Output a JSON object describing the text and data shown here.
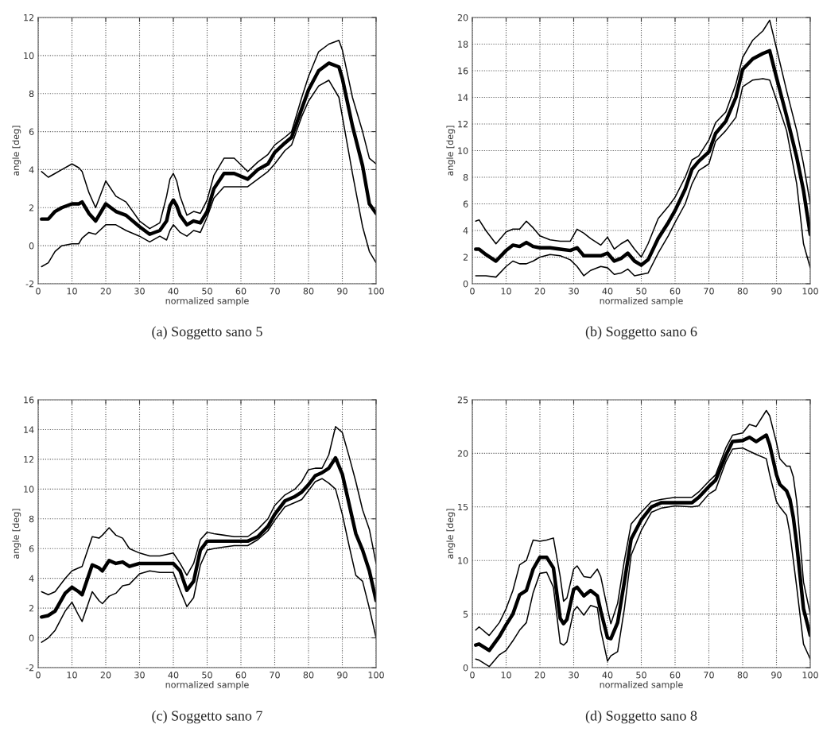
{
  "chart_data": [
    {
      "type": "line",
      "title": "(a) Soggetto sano 5",
      "xlabel": "normalized sample",
      "ylabel": "angle [deg]",
      "xlim": [
        0,
        100
      ],
      "xticks": [
        0,
        10,
        20,
        30,
        40,
        50,
        60,
        70,
        80,
        90,
        100
      ],
      "ylim": [
        -2,
        12
      ],
      "yticks": [
        -2,
        0,
        2,
        4,
        6,
        8,
        10,
        12
      ],
      "grid": true,
      "line_style": "solid",
      "x": [
        1,
        3,
        5,
        7,
        10,
        12,
        13,
        15,
        17,
        20,
        23,
        26,
        30,
        33,
        36,
        38,
        39,
        40,
        41,
        42,
        44,
        46,
        48,
        50,
        52,
        55,
        58,
        62,
        65,
        68,
        70,
        73,
        75,
        78,
        80,
        83,
        86,
        89,
        90,
        93,
        96,
        98,
        100
      ],
      "series": [
        {
          "color": "#000000",
          "values": [
            3.9,
            3.6,
            3.8,
            4.0,
            4.3,
            4.1,
            3.9,
            2.8,
            2.0,
            3.4,
            2.6,
            2.3,
            1.3,
            0.9,
            1.2,
            2.6,
            3.5,
            3.8,
            3.4,
            2.6,
            1.6,
            1.8,
            1.7,
            2.4,
            3.7,
            4.6,
            4.6,
            3.9,
            4.4,
            4.8,
            5.3,
            5.7,
            6.0,
            7.8,
            8.9,
            10.2,
            10.6,
            10.8,
            10.3,
            7.8,
            6.0,
            4.6,
            4.3
          ]
        },
        {
          "color": "#000000",
          "values": [
            1.4,
            1.4,
            1.8,
            2.0,
            2.2,
            2.2,
            2.3,
            1.7,
            1.3,
            2.2,
            1.8,
            1.6,
            1.0,
            0.6,
            0.8,
            1.3,
            2.1,
            2.4,
            2.1,
            1.6,
            1.1,
            1.3,
            1.2,
            1.8,
            3.0,
            3.8,
            3.8,
            3.5,
            4.0,
            4.3,
            4.9,
            5.4,
            5.7,
            7.2,
            8.2,
            9.2,
            9.6,
            9.4,
            8.8,
            6.3,
            4.2,
            2.2,
            1.7
          ]
        },
        {
          "color": "#000000",
          "values": [
            -1.1,
            -0.9,
            -0.3,
            0.0,
            0.1,
            0.1,
            0.4,
            0.7,
            0.6,
            1.1,
            1.1,
            0.8,
            0.5,
            0.2,
            0.5,
            0.3,
            0.8,
            1.1,
            0.9,
            0.7,
            0.5,
            0.8,
            0.7,
            1.5,
            2.5,
            3.1,
            3.1,
            3.1,
            3.5,
            3.9,
            4.3,
            5.0,
            5.3,
            6.8,
            7.6,
            8.4,
            8.7,
            7.8,
            6.8,
            3.8,
            1.0,
            -0.3,
            -0.9
          ]
        }
      ]
    },
    {
      "type": "line",
      "title": "(b) Soggetto sano 6",
      "xlabel": "normalized sample",
      "ylabel": "angle [deg]",
      "xlim": [
        0,
        100
      ],
      "xticks": [
        0,
        10,
        20,
        30,
        40,
        50,
        60,
        70,
        80,
        90,
        100
      ],
      "ylim": [
        0,
        20
      ],
      "yticks": [
        0,
        2,
        4,
        6,
        8,
        10,
        12,
        14,
        16,
        18,
        20
      ],
      "grid": true,
      "line_style": "solid",
      "x": [
        1,
        2,
        4,
        7,
        10,
        12,
        14,
        16,
        18,
        20,
        23,
        26,
        29,
        31,
        33,
        35,
        38,
        40,
        42,
        44,
        46,
        48,
        50,
        52,
        55,
        58,
        60,
        63,
        65,
        67,
        70,
        72,
        75,
        78,
        80,
        83,
        86,
        88,
        90,
        93,
        96,
        98,
        100
      ],
      "series": [
        {
          "color": "#000000",
          "values": [
            4.7,
            4.8,
            4.0,
            3.0,
            3.9,
            4.1,
            4.1,
            4.7,
            4.2,
            3.6,
            3.3,
            3.2,
            3.2,
            4.1,
            3.8,
            3.4,
            2.9,
            3.5,
            2.6,
            3.0,
            3.3,
            2.6,
            2.0,
            3.0,
            4.9,
            5.8,
            6.5,
            8.0,
            9.3,
            9.6,
            10.8,
            12.1,
            12.9,
            15.0,
            17.0,
            18.3,
            19.0,
            19.8,
            17.7,
            14.5,
            11.5,
            9.0,
            6.0
          ]
        },
        {
          "color": "#000000",
          "values": [
            2.6,
            2.6,
            2.2,
            1.7,
            2.5,
            2.9,
            2.8,
            3.1,
            2.8,
            2.7,
            2.7,
            2.6,
            2.5,
            2.7,
            2.1,
            2.1,
            2.1,
            2.3,
            1.7,
            1.9,
            2.3,
            1.7,
            1.4,
            1.8,
            3.4,
            4.6,
            5.5,
            7.1,
            8.6,
            9.2,
            9.9,
            11.3,
            12.2,
            14.0,
            16.1,
            16.9,
            17.3,
            17.5,
            15.5,
            12.6,
            9.5,
            7.0,
            3.7
          ]
        },
        {
          "color": "#000000",
          "values": [
            0.6,
            0.6,
            0.6,
            0.5,
            1.3,
            1.7,
            1.5,
            1.5,
            1.7,
            2.0,
            2.2,
            2.1,
            1.8,
            1.3,
            0.6,
            1.0,
            1.3,
            1.2,
            0.7,
            0.8,
            1.1,
            0.6,
            0.7,
            0.8,
            2.3,
            3.6,
            4.6,
            6.0,
            7.5,
            8.5,
            9.0,
            10.7,
            11.5,
            12.5,
            14.8,
            15.3,
            15.4,
            15.3,
            13.8,
            11.5,
            7.5,
            3.0,
            1.2
          ]
        }
      ]
    },
    {
      "type": "line",
      "title": "(c) Soggetto sano 7",
      "xlabel": "normalized sample",
      "ylabel": "angle [deg]",
      "xlim": [
        0,
        100
      ],
      "xticks": [
        0,
        10,
        20,
        30,
        40,
        50,
        60,
        70,
        80,
        90,
        100
      ],
      "ylim": [
        -2,
        16
      ],
      "yticks": [
        -2,
        0,
        2,
        4,
        6,
        8,
        10,
        12,
        14,
        16
      ],
      "grid": true,
      "line_style": "solid",
      "x": [
        1,
        3,
        5,
        8,
        10,
        12,
        13,
        16,
        18,
        19,
        21,
        23,
        25,
        27,
        30,
        33,
        36,
        40,
        42,
        44,
        46,
        48,
        50,
        52,
        55,
        58,
        62,
        65,
        68,
        70,
        73,
        76,
        78,
        80,
        82,
        84,
        86,
        88,
        90,
        92,
        94,
        96,
        98,
        100
      ],
      "series": [
        {
          "color": "#000000",
          "values": [
            3.1,
            2.9,
            3.1,
            4.0,
            4.5,
            4.7,
            4.8,
            6.8,
            6.7,
            6.9,
            7.4,
            6.9,
            6.7,
            6.0,
            5.7,
            5.5,
            5.5,
            5.7,
            5.0,
            4.2,
            5.0,
            6.6,
            7.1,
            7.0,
            6.9,
            6.8,
            6.8,
            7.3,
            8.0,
            8.9,
            9.6,
            10.0,
            10.5,
            11.3,
            11.4,
            11.4,
            12.3,
            14.2,
            13.8,
            12.2,
            10.5,
            8.6,
            7.3,
            5.0
          ]
        },
        {
          "color": "#000000",
          "values": [
            1.4,
            1.5,
            1.8,
            3.0,
            3.4,
            3.1,
            2.9,
            4.9,
            4.7,
            4.5,
            5.2,
            5.0,
            5.1,
            4.8,
            5.0,
            5.0,
            5.0,
            5.0,
            4.5,
            3.2,
            3.8,
            5.9,
            6.5,
            6.5,
            6.5,
            6.5,
            6.5,
            6.8,
            7.5,
            8.3,
            9.2,
            9.5,
            9.8,
            10.3,
            10.9,
            11.1,
            11.4,
            12.1,
            11.0,
            9.0,
            7.0,
            5.9,
            4.5,
            2.5
          ]
        },
        {
          "color": "#000000",
          "values": [
            -0.3,
            0.0,
            0.5,
            1.8,
            2.4,
            1.5,
            1.1,
            3.1,
            2.5,
            2.3,
            2.8,
            3.0,
            3.5,
            3.6,
            4.3,
            4.5,
            4.4,
            4.4,
            3.2,
            2.1,
            2.7,
            4.9,
            5.9,
            6.0,
            6.1,
            6.2,
            6.2,
            6.6,
            7.2,
            7.9,
            8.8,
            9.1,
            9.3,
            9.9,
            10.5,
            10.7,
            10.4,
            10.0,
            8.3,
            6.2,
            4.2,
            3.8,
            2.0,
            0.0
          ]
        }
      ]
    },
    {
      "type": "line",
      "title": "(d) Soggetto sano 8",
      "xlabel": "normalized sample",
      "ylabel": "angle [deg]",
      "xlim": [
        0,
        100
      ],
      "xticks": [
        0,
        10,
        20,
        30,
        40,
        50,
        60,
        70,
        80,
        90,
        100
      ],
      "ylim": [
        0,
        25
      ],
      "yticks": [
        0,
        5,
        10,
        15,
        20,
        25
      ],
      "grid": true,
      "line_style": "solid",
      "x": [
        1,
        2,
        5,
        8,
        10,
        12,
        14,
        16,
        18,
        20,
        22,
        24,
        26,
        27,
        28,
        30,
        31,
        33,
        35,
        37,
        38,
        40,
        41,
        43,
        45,
        47,
        50,
        53,
        56,
        60,
        65,
        67,
        70,
        72,
        75,
        77,
        80,
        82,
        84,
        87,
        88,
        90,
        91,
        93,
        94,
        95,
        96,
        98,
        100
      ],
      "series": [
        {
          "color": "#000000",
          "values": [
            3.5,
            3.8,
            3.0,
            4.2,
            5.5,
            7.2,
            9.6,
            10.0,
            11.9,
            11.8,
            11.9,
            12.1,
            8.5,
            6.2,
            6.5,
            9.2,
            9.5,
            8.5,
            8.4,
            9.2,
            8.5,
            5.5,
            4.1,
            6.0,
            10.0,
            13.4,
            14.5,
            15.5,
            15.7,
            15.9,
            15.9,
            16.4,
            17.4,
            18.0,
            20.5,
            21.7,
            21.9,
            22.7,
            22.5,
            24.0,
            23.5,
            21.0,
            19.5,
            18.8,
            18.8,
            17.8,
            15.5,
            8.0,
            5.0
          ]
        },
        {
          "color": "#000000",
          "values": [
            2.1,
            2.2,
            1.6,
            2.9,
            4.0,
            5.0,
            6.8,
            7.2,
            9.2,
            10.3,
            10.3,
            9.3,
            4.6,
            4.1,
            4.5,
            7.3,
            7.5,
            6.7,
            7.2,
            6.7,
            5.3,
            2.8,
            2.7,
            4.2,
            8.0,
            12.0,
            13.8,
            15.0,
            15.4,
            15.4,
            15.4,
            15.9,
            16.9,
            17.5,
            19.8,
            21.1,
            21.2,
            21.5,
            21.1,
            21.7,
            20.8,
            18.0,
            17.1,
            16.5,
            15.7,
            14.0,
            11.5,
            5.5,
            3.0
          ]
        },
        {
          "color": "#000000",
          "values": [
            0.8,
            0.7,
            0.1,
            1.2,
            1.6,
            2.5,
            3.5,
            4.2,
            7.0,
            8.8,
            8.9,
            7.5,
            2.3,
            2.1,
            2.4,
            5.3,
            5.7,
            4.9,
            5.8,
            5.6,
            3.5,
            0.6,
            1.1,
            1.5,
            5.5,
            10.5,
            12.8,
            14.5,
            14.9,
            15.1,
            15.0,
            15.1,
            16.2,
            16.6,
            19.2,
            20.4,
            20.5,
            20.2,
            19.9,
            19.5,
            18.0,
            15.5,
            15.0,
            14.2,
            12.5,
            10.0,
            7.5,
            2.2,
            0.8
          ]
        }
      ]
    }
  ]
}
